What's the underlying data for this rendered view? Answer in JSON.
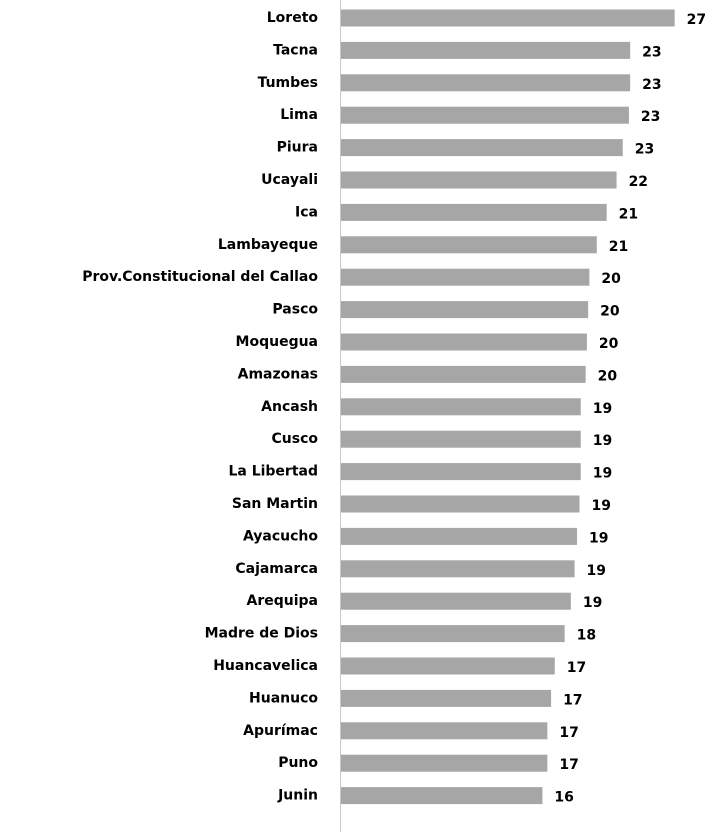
{
  "chart_data": {
    "type": "barh",
    "categories": [
      "Loreto",
      "Tacna",
      "Tumbes",
      "Lima",
      "Piura",
      "Ucayali",
      "Ica",
      "Lambayeque",
      "Prov.Constitucional del Callao",
      "Pasco",
      "Moquegua",
      "Amazonas",
      "Ancash",
      "Cusco",
      "La Libertad",
      "San Martin",
      "Ayacucho",
      "Cajamarca",
      "Arequipa",
      "Madre de Dios",
      "Huancavelica",
      "Huanuco",
      "Apurímac",
      "Puno",
      "Junin"
    ],
    "values": [
      27.0,
      23.4,
      23.4,
      23.3,
      22.8,
      22.3,
      21.5,
      20.7,
      20.1,
      20.0,
      19.9,
      19.8,
      19.4,
      19.4,
      19.4,
      19.3,
      19.1,
      18.9,
      18.6,
      18.1,
      17.3,
      17.0,
      16.7,
      16.7,
      16.3
    ],
    "value_labels": [
      "27",
      "23",
      "23",
      "23",
      "23",
      "22",
      "21",
      "21",
      "20",
      "20",
      "20",
      "20",
      "19",
      "19",
      "19",
      "19",
      "19",
      "19",
      "19",
      "18",
      "17",
      "17",
      "17",
      "17",
      "16"
    ],
    "color": "#a6a6a6",
    "xlim": [
      0,
      28
    ]
  }
}
